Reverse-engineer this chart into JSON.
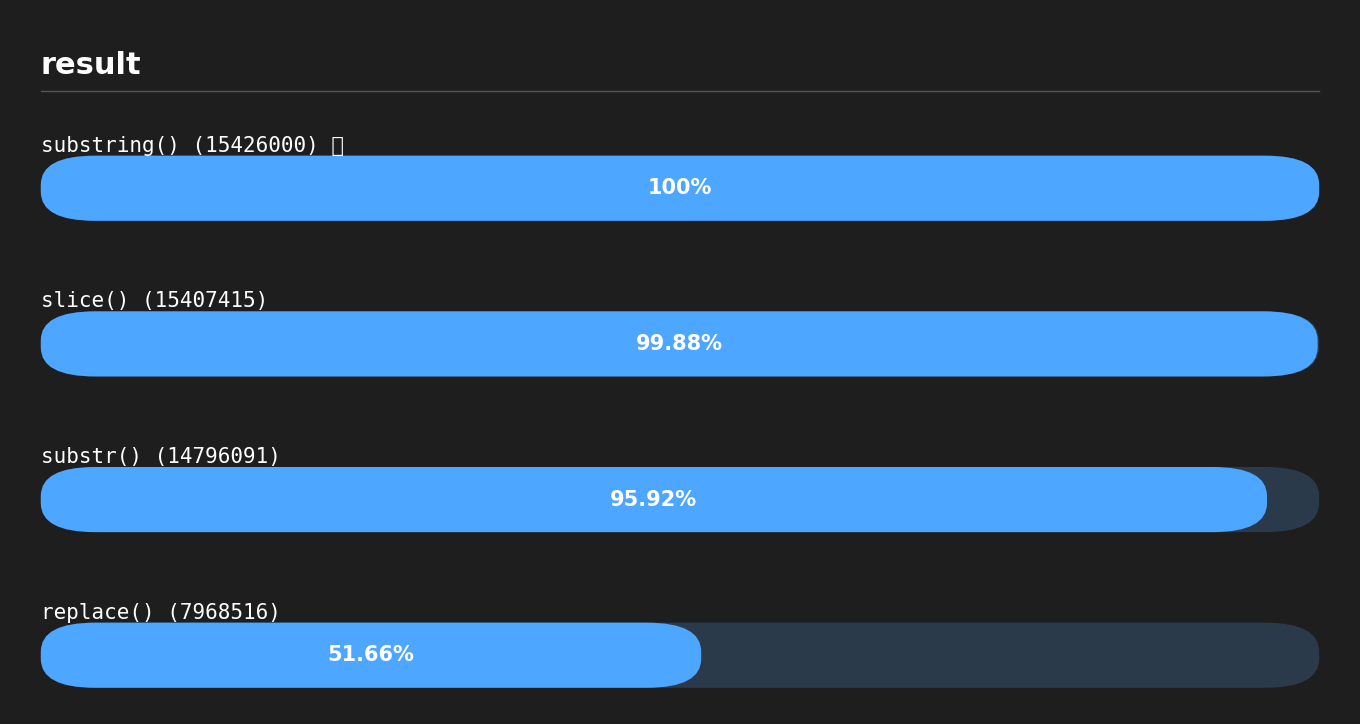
{
  "title": "result",
  "background_color": "#1e1e1e",
  "title_color": "#ffffff",
  "bar_color": "#4da6ff",
  "bar_bg_color": "#2a3a4a",
  "text_color": "#ffffff",
  "separator_color": "#555555",
  "methods": [
    {
      "label": "substring() (15426000) 🏆",
      "value": 100.0,
      "display": "100%"
    },
    {
      "label": "slice() (15407415)",
      "value": 99.88,
      "display": "99.88%"
    },
    {
      "label": "substr() (14796091)",
      "value": 95.92,
      "display": "95.92%"
    },
    {
      "label": "replace() (7968516)",
      "value": 51.66,
      "display": "51.66%"
    }
  ],
  "figsize": [
    13.6,
    7.24
  ],
  "dpi": 100
}
